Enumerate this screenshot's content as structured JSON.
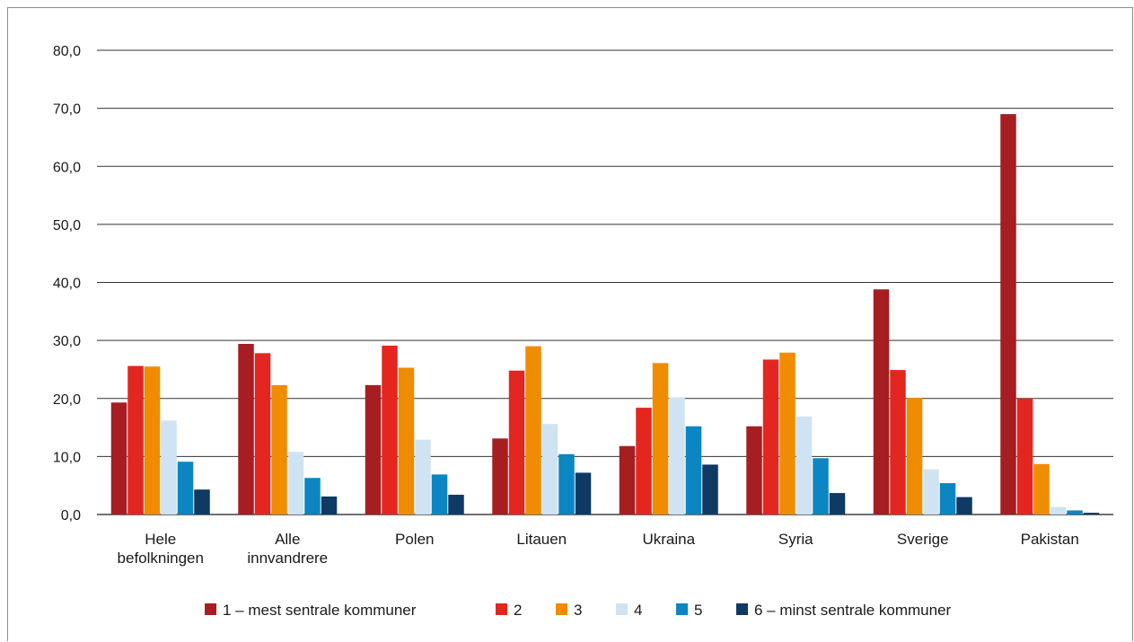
{
  "chart_data": {
    "type": "bar",
    "title": "",
    "xlabel": "",
    "ylabel": "",
    "ylim": [
      0,
      80
    ],
    "yticks": [
      "0,0",
      "10,0",
      "20,0",
      "30,0",
      "40,0",
      "50,0",
      "60,0",
      "70,0",
      "80,0"
    ],
    "grid": true,
    "legend_position": "bottom",
    "categories": [
      [
        "Hele",
        "befolkningen"
      ],
      [
        "Alle",
        "innvandrere"
      ],
      [
        "Polen"
      ],
      [
        "Litauen"
      ],
      [
        "Ukraina"
      ],
      [
        "Syria"
      ],
      [
        "Sverige"
      ],
      [
        "Pakistan"
      ]
    ],
    "series": [
      {
        "name": "1 – mest sentrale kommuner",
        "color": "#a61e22",
        "values": [
          19.3,
          29.4,
          22.3,
          13.1,
          11.8,
          15.2,
          38.8,
          69.0
        ]
      },
      {
        "name": "2",
        "color": "#e3261f",
        "values": [
          25.6,
          27.8,
          29.1,
          24.8,
          18.4,
          26.7,
          24.9,
          20.0
        ]
      },
      {
        "name": "3",
        "color": "#f08c00",
        "values": [
          25.5,
          22.3,
          25.3,
          29.0,
          26.1,
          27.9,
          20.1,
          8.7
        ]
      },
      {
        "name": "4",
        "color": "#cfe3f3",
        "values": [
          16.2,
          10.8,
          12.9,
          15.6,
          20.2,
          16.9,
          7.8,
          1.3
        ]
      },
      {
        "name": "5",
        "color": "#0b86c2",
        "values": [
          9.1,
          6.3,
          6.9,
          10.4,
          15.2,
          9.7,
          5.4,
          0.7
        ]
      },
      {
        "name": "6 – minst sentrale kommuner",
        "color": "#0e3a63",
        "values": [
          4.3,
          3.1,
          3.4,
          7.2,
          8.6,
          3.7,
          3.0,
          0.3
        ]
      }
    ]
  }
}
